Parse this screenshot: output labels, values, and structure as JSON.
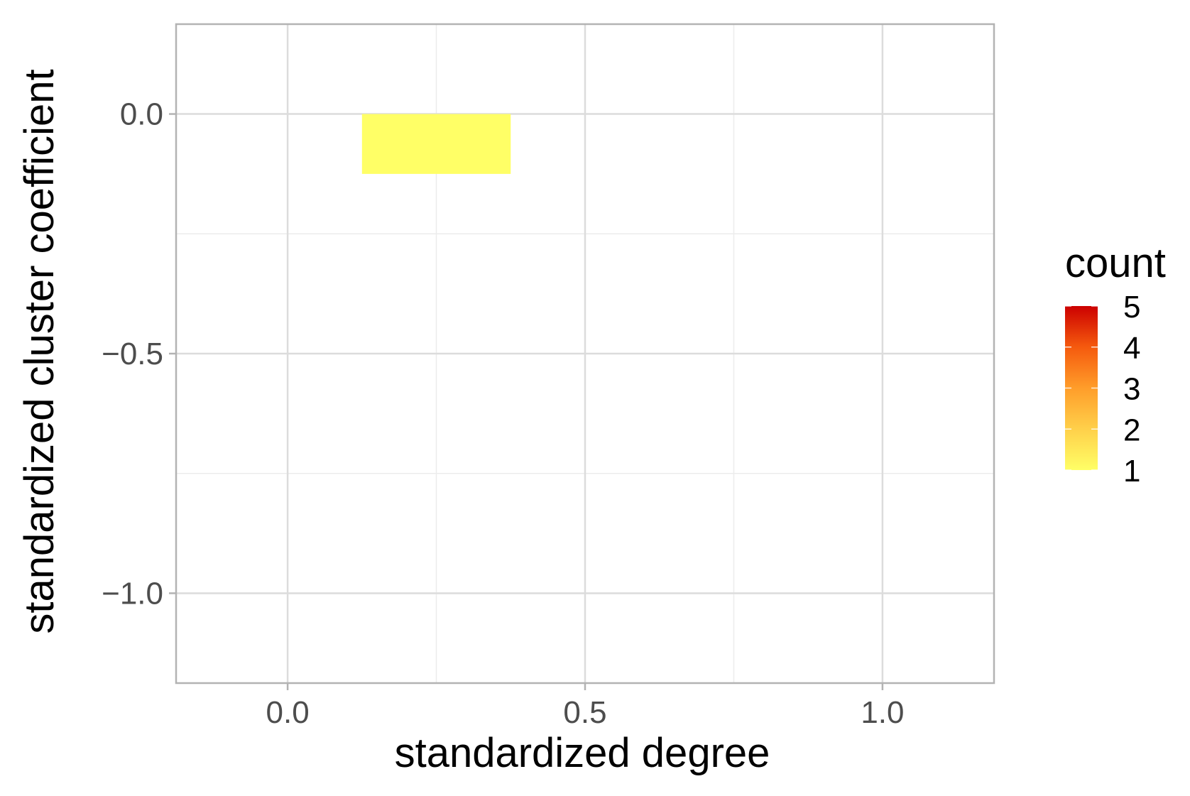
{
  "chart_data": {
    "type": "heatmap",
    "xlabel": "standardized degree",
    "ylabel": "standardized cluster coefficient",
    "xlim": [
      -0.1875,
      1.1875
    ],
    "ylim": [
      -1.1875,
      0.1875
    ],
    "x_ticks": [
      {
        "value": 0.0,
        "label": "0.0"
      },
      {
        "value": 0.5,
        "label": "0.5"
      },
      {
        "value": 1.0,
        "label": "1.0"
      }
    ],
    "y_ticks": [
      {
        "value": 0.0,
        "label": "0.0"
      },
      {
        "value": -0.5,
        "label": "−0.5"
      },
      {
        "value": -1.0,
        "label": "−1.0"
      }
    ],
    "x_minor_breaks": [
      0.25,
      0.75
    ],
    "y_minor_breaks": [
      -0.25,
      -0.75
    ],
    "grid": true,
    "bins": [
      {
        "x0": 0.125,
        "x1": 0.375,
        "y0": -0.125,
        "y1": 0.0,
        "count": 1
      }
    ],
    "legend": {
      "title": "count",
      "position": "right",
      "min": 1,
      "max": 5,
      "breaks": [
        1,
        2,
        3,
        4,
        5
      ],
      "colors": [
        "#ffff66",
        "#ffd04a",
        "#ff9d2a",
        "#f55a0e",
        "#cc0000"
      ]
    },
    "colors": {
      "low": "#ffff66",
      "high": "#cc0000",
      "panel_border": "#b3b3b3",
      "grid_major": "#dcdcdc",
      "grid_minor": "#ececec"
    }
  }
}
